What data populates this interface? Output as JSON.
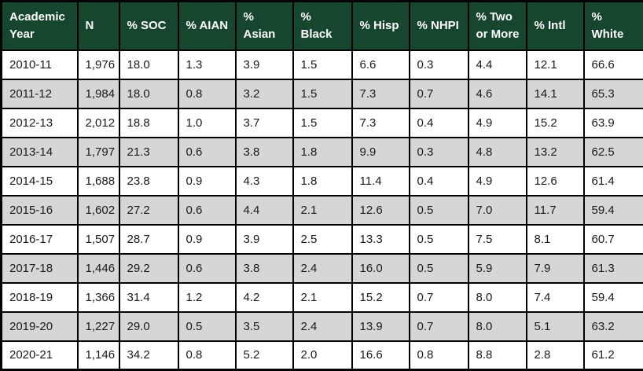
{
  "colors": {
    "header_background": "#17462f",
    "header_text": "#ffffff",
    "row_even_background": "#d6d6d6",
    "row_odd_background": "#ffffff",
    "border": "#000000",
    "cell_text": "#1a1a1a"
  },
  "table": {
    "columns": [
      {
        "key": "academic-year",
        "label": "Academic\nYear"
      },
      {
        "key": "n",
        "label": "N"
      },
      {
        "key": "pct-soc",
        "label": "% SOC"
      },
      {
        "key": "pct-aian",
        "label": "% AIAN"
      },
      {
        "key": "pct-asian",
        "label": "% Asian"
      },
      {
        "key": "pct-black",
        "label": "% Black"
      },
      {
        "key": "pct-hisp",
        "label": "% Hisp"
      },
      {
        "key": "pct-nhpi",
        "label": "% NHPI"
      },
      {
        "key": "pct-two-or-more",
        "label": "% Two\nor More"
      },
      {
        "key": "pct-intl",
        "label": "% Intl"
      },
      {
        "key": "pct-white",
        "label": "%\nWhite"
      }
    ],
    "rows": [
      [
        "2010-11",
        "1,976",
        "18.0",
        "1.3",
        "3.9",
        "1.5",
        "6.6",
        "0.3",
        "4.4",
        "12.1",
        "66.6"
      ],
      [
        "2011-12",
        "1,984",
        "18.0",
        "0.8",
        "3.2",
        "1.5",
        "7.3",
        "0.7",
        "4.6",
        "14.1",
        "65.3"
      ],
      [
        "2012-13",
        "2,012",
        "18.8",
        "1.0",
        "3.7",
        "1.5",
        "7.3",
        "0.4",
        "4.9",
        "15.2",
        "63.9"
      ],
      [
        "2013-14",
        "1,797",
        "21.3",
        "0.6",
        "3.8",
        "1.8",
        "9.9",
        "0.3",
        "4.8",
        "13.2",
        "62.5"
      ],
      [
        "2014-15",
        "1,688",
        "23.8",
        "0.9",
        "4.3",
        "1.8",
        "11.4",
        "0.4",
        "4.9",
        "12.6",
        "61.4"
      ],
      [
        "2015-16",
        "1,602",
        "27.2",
        "0.6",
        "4.4",
        "2.1",
        "12.6",
        "0.5",
        "7.0",
        "11.7",
        "59.4"
      ],
      [
        "2016-17",
        "1,507",
        "28.7",
        "0.9",
        "3.9",
        "2.5",
        "13.3",
        "0.5",
        "7.5",
        "8.1",
        "60.7"
      ],
      [
        "2017-18",
        "1,446",
        "29.2",
        "0.6",
        "3.8",
        "2.4",
        "16.0",
        "0.5",
        "5.9",
        "7.9",
        "61.3"
      ],
      [
        "2018-19",
        "1,366",
        "31.4",
        "1.2",
        "4.2",
        "2.1",
        "15.2",
        "0.7",
        "8.0",
        "7.4",
        "59.4"
      ],
      [
        "2019-20",
        "1,227",
        "29.0",
        "0.5",
        "3.5",
        "2.4",
        "13.9",
        "0.7",
        "8.0",
        "5.1",
        "63.2"
      ],
      [
        "2020-21",
        "1,146",
        "34.2",
        "0.8",
        "5.2",
        "2.0",
        "16.6",
        "0.8",
        "8.8",
        "2.8",
        "61.2"
      ]
    ]
  },
  "chart_data": {
    "type": "table",
    "title": "",
    "columns": [
      "Academic Year",
      "N",
      "% SOC",
      "% AIAN",
      "% Asian",
      "% Black",
      "% Hisp",
      "% NHPI",
      "% Two or More",
      "% Intl",
      "% White"
    ],
    "rows": [
      [
        "2010-11",
        1976,
        18.0,
        1.3,
        3.9,
        1.5,
        6.6,
        0.3,
        4.4,
        12.1,
        66.6
      ],
      [
        "2011-12",
        1984,
        18.0,
        0.8,
        3.2,
        1.5,
        7.3,
        0.7,
        4.6,
        14.1,
        65.3
      ],
      [
        "2012-13",
        2012,
        18.8,
        1.0,
        3.7,
        1.5,
        7.3,
        0.4,
        4.9,
        15.2,
        63.9
      ],
      [
        "2013-14",
        1797,
        21.3,
        0.6,
        3.8,
        1.8,
        9.9,
        0.3,
        4.8,
        13.2,
        62.5
      ],
      [
        "2014-15",
        1688,
        23.8,
        0.9,
        4.3,
        1.8,
        11.4,
        0.4,
        4.9,
        12.6,
        61.4
      ],
      [
        "2015-16",
        1602,
        27.2,
        0.6,
        4.4,
        2.1,
        12.6,
        0.5,
        7.0,
        11.7,
        59.4
      ],
      [
        "2016-17",
        1507,
        28.7,
        0.9,
        3.9,
        2.5,
        13.3,
        0.5,
        7.5,
        8.1,
        60.7
      ],
      [
        "2017-18",
        1446,
        29.2,
        0.6,
        3.8,
        2.4,
        16.0,
        0.5,
        5.9,
        7.9,
        61.3
      ],
      [
        "2018-19",
        1366,
        31.4,
        1.2,
        4.2,
        2.1,
        15.2,
        0.7,
        8.0,
        7.4,
        59.4
      ],
      [
        "2019-20",
        1227,
        29.0,
        0.5,
        3.5,
        2.4,
        13.9,
        0.7,
        8.0,
        5.1,
        63.2
      ],
      [
        "2020-21",
        1146,
        34.2,
        0.8,
        5.2,
        2.0,
        16.6,
        0.8,
        8.8,
        2.8,
        61.2
      ]
    ]
  }
}
